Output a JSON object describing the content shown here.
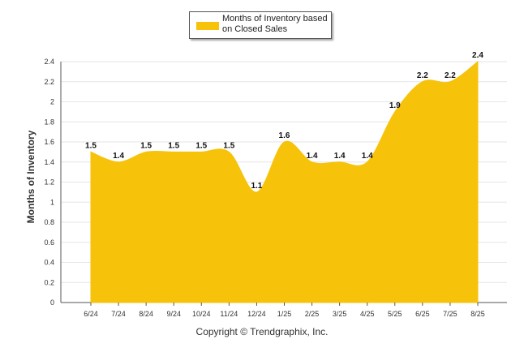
{
  "legend": {
    "label": "Months of Inventory based on Closed Sales"
  },
  "footer": {
    "copyright": "Copyright © Trendgraphix, Inc."
  },
  "colors": {
    "fill": "#F6C30A",
    "grid": "#e6e6e6",
    "axis": "#555555"
  },
  "chart_data": {
    "type": "area",
    "title": "",
    "xlabel": "",
    "ylabel": "Months of Inventory",
    "categories": [
      "6/24",
      "7/24",
      "8/24",
      "9/24",
      "10/24",
      "11/24",
      "12/24",
      "1/25",
      "2/25",
      "3/25",
      "4/25",
      "5/25",
      "6/25",
      "7/25",
      "8/25"
    ],
    "series": [
      {
        "name": "Months of Inventory based on Closed Sales",
        "values": [
          1.5,
          1.4,
          1.5,
          1.5,
          1.5,
          1.5,
          1.1,
          1.6,
          1.4,
          1.4,
          1.4,
          1.9,
          2.2,
          2.2,
          2.4
        ]
      }
    ],
    "ylim": [
      0,
      2.4
    ],
    "yticks": [
      0,
      0.2,
      0.4,
      0.6,
      0.8,
      1,
      1.2,
      1.4,
      1.6,
      1.8,
      2,
      2.2,
      2.4
    ],
    "grid": true,
    "legend_position": "top-center"
  }
}
